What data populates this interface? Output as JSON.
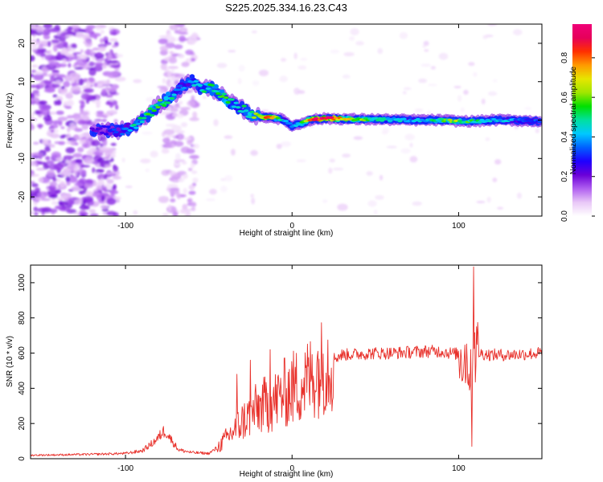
{
  "figure_title": "S225.2025.334.16.23.C43",
  "chart_data": [
    {
      "type": "heatmap",
      "title": "S225.2025.334.16.23.C43",
      "xlabel": "Height of straight line (km)",
      "ylabel": "Frequency (Hz)",
      "xlim": [
        -157,
        150
      ],
      "ylim": [
        -25,
        25
      ],
      "xticks": [
        -100,
        0,
        100
      ],
      "xtick_labels": [
        "-100",
        "0",
        "100"
      ],
      "yticks": [
        -20,
        -10,
        0,
        10,
        20
      ],
      "ytick_labels": [
        "-20",
        "-10",
        "0",
        "10",
        "20"
      ],
      "colorbar": {
        "label": "Normalized spectral amplitude",
        "range": [
          0.0,
          0.97
        ],
        "ticks": [
          0.0,
          0.2,
          0.4,
          0.6,
          0.8
        ],
        "tick_labels": [
          "0.0",
          "0.2",
          "0.4",
          "0.6",
          "0.8"
        ],
        "colormap": [
          "#ffffff",
          "#e9c8f7",
          "#b060f0",
          "#6a00d8",
          "#1e00ff",
          "#0060ff",
          "#00c8ff",
          "#00e0a0",
          "#00e000",
          "#a0e600",
          "#e6e600",
          "#ff9a00",
          "#ff3000",
          "#e6005a",
          "#f00078"
        ]
      },
      "ridge": {
        "description": "dominant frequency ridge (Hz) vs height (km)",
        "x": [
          -120,
          -110,
          -100,
          -95,
          -90,
          -85,
          -80,
          -75,
          -70,
          -65,
          -60,
          -55,
          -50,
          -45,
          -40,
          -35,
          -30,
          -25,
          -20,
          -15,
          -10,
          -5,
          0,
          5,
          10,
          15,
          20,
          30,
          40,
          50,
          60,
          70,
          80,
          90,
          100,
          110,
          120,
          130,
          140,
          150
        ],
        "y": [
          -3,
          -2.8,
          -2.5,
          -1.5,
          0,
          2,
          4,
          5.5,
          7,
          9,
          10.5,
          8,
          8.5,
          7.5,
          5.5,
          4,
          3,
          1.5,
          0.8,
          0.8,
          0.6,
          0,
          -1.5,
          -1,
          0,
          0.2,
          0.4,
          0.3,
          0.2,
          0.2,
          0.1,
          0,
          0,
          0,
          -0.3,
          -0.3,
          0,
          0,
          -0.2,
          -0.3
        ],
        "amplitude": [
          0.2,
          0.3,
          0.35,
          0.45,
          0.5,
          0.55,
          0.6,
          0.55,
          0.45,
          0.35,
          0.4,
          0.45,
          0.5,
          0.5,
          0.55,
          0.45,
          0.45,
          0.55,
          0.6,
          0.85,
          0.7,
          0.4,
          0.35,
          0.5,
          0.75,
          0.95,
          0.95,
          0.75,
          0.6,
          0.5,
          0.45,
          0.42,
          0.42,
          0.55,
          0.6,
          0.5,
          0.42,
          0.4,
          0.35,
          0.3
        ]
      }
    },
    {
      "type": "line",
      "xlabel": "Height of straight line (km)",
      "ylabel": "SNR (10 * v/v)",
      "xlim": [
        -157,
        150
      ],
      "ylim": [
        0,
        1100
      ],
      "xticks": [
        -100,
        0,
        100
      ],
      "xtick_labels": [
        "-100",
        "0",
        "100"
      ],
      "yticks": [
        0,
        200,
        400,
        600,
        800,
        1000
      ],
      "ytick_labels": [
        "0",
        "200",
        "400",
        "600",
        "800",
        "1000"
      ],
      "series": [
        {
          "name": "SNR",
          "color": "#e8302a",
          "x": [
            -157,
            -140,
            -120,
            -100,
            -90,
            -85,
            -80,
            -78,
            -76,
            -72,
            -68,
            -60,
            -50,
            -45,
            -40,
            -35,
            -30,
            -25,
            -20,
            -15,
            -10,
            -5,
            0,
            5,
            10,
            15,
            20,
            25,
            30,
            40,
            50,
            60,
            70,
            80,
            90,
            95,
            100,
            104,
            106,
            107,
            108,
            109,
            110,
            112,
            115,
            120,
            130,
            140,
            150
          ],
          "y": [
            20,
            22,
            25,
            30,
            45,
            80,
            120,
            150,
            160,
            100,
            50,
            35,
            30,
            60,
            110,
            160,
            210,
            250,
            290,
            310,
            330,
            370,
            400,
            420,
            450,
            500,
            540,
            570,
            590,
            595,
            600,
            600,
            605,
            610,
            610,
            600,
            595,
            580,
            550,
            420,
            600,
            800,
            620,
            600,
            595,
            590,
            590,
            595,
            600
          ],
          "highlights": {
            "x": [
              -33,
              -25,
              -13,
              2,
              108,
              109
            ],
            "y": [
              480,
              560,
              620,
              520,
              70,
              1090
            ]
          }
        }
      ]
    }
  ]
}
